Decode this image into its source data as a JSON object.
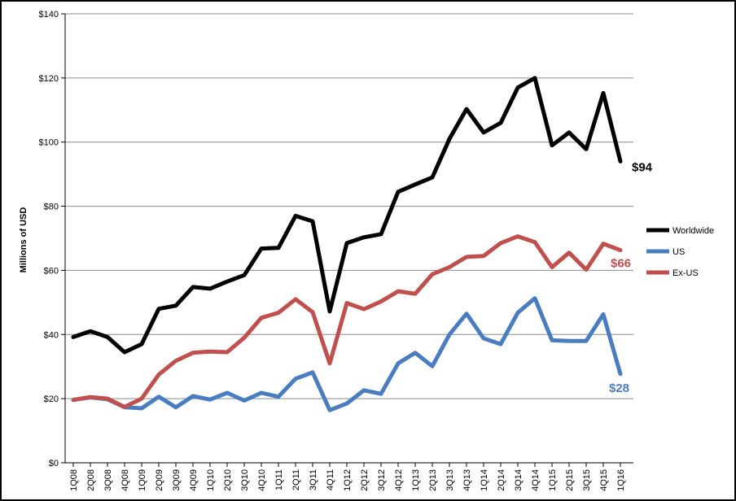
{
  "chart_data": {
    "type": "line",
    "title": "",
    "xlabel": "",
    "ylabel": "Millions of USD",
    "ylim": [
      0,
      140
    ],
    "yticks": [
      0,
      20,
      40,
      60,
      80,
      100,
      120,
      140
    ],
    "ytick_labels": [
      "$0",
      "$20",
      "$40",
      "$60",
      "$80",
      "$100",
      "$120",
      "$140"
    ],
    "grid": "horizontal",
    "legend_position": "right",
    "categories": [
      "1Q08",
      "2Q08",
      "3Q08",
      "4Q08",
      "1Q09",
      "2Q09",
      "3Q09",
      "4Q09",
      "1Q10",
      "2Q10",
      "3Q10",
      "4Q10",
      "1Q11",
      "2Q11",
      "3Q11",
      "4Q11",
      "1Q12",
      "2Q12",
      "3Q12",
      "4Q12",
      "1Q13",
      "2Q13",
      "3Q13",
      "4Q13",
      "1Q14",
      "2Q14",
      "3Q14",
      "4Q14",
      "1Q15",
      "2Q15",
      "3Q15",
      "4Q15",
      "1Q16"
    ],
    "series": [
      {
        "name": "Worldwide",
        "color": "#000000",
        "end_label": "$94",
        "values": [
          39.2,
          41.0,
          39.2,
          34.5,
          37.0,
          48.0,
          49.0,
          54.8,
          54.3,
          56.5,
          58.5,
          66.8,
          67.0,
          77.0,
          75.3,
          47.2,
          68.5,
          70.3,
          71.3,
          84.5,
          86.8,
          89.0,
          101.0,
          110.3,
          103.0,
          106.0,
          117.0,
          120.0,
          99.0,
          103.0,
          97.8,
          115.3,
          94.0
        ]
      },
      {
        "name": "US",
        "color": "#4a7cc0",
        "end_label": "$28",
        "values": [
          19.6,
          20.4,
          19.8,
          17.3,
          17.0,
          20.6,
          17.3,
          20.8,
          19.7,
          21.8,
          19.4,
          21.8,
          20.6,
          26.2,
          28.2,
          16.4,
          18.5,
          22.6,
          21.5,
          31.0,
          34.3,
          30.1,
          40.0,
          46.5,
          38.8,
          37.0,
          46.8,
          51.3,
          38.2,
          38.0,
          38.0,
          46.3,
          27.7
        ]
      },
      {
        "name": "Ex-US",
        "color": "#c0504d",
        "end_label": "$66",
        "values": [
          19.6,
          20.5,
          20.0,
          17.4,
          20.0,
          27.5,
          31.8,
          34.3,
          34.7,
          34.5,
          39.0,
          45.2,
          46.8,
          51.0,
          47.0,
          31.0,
          49.8,
          47.9,
          50.3,
          53.5,
          52.7,
          58.8,
          61.0,
          64.2,
          64.5,
          68.5,
          70.6,
          68.8,
          61.0,
          65.5,
          60.2,
          68.3,
          66.3
        ]
      }
    ]
  }
}
